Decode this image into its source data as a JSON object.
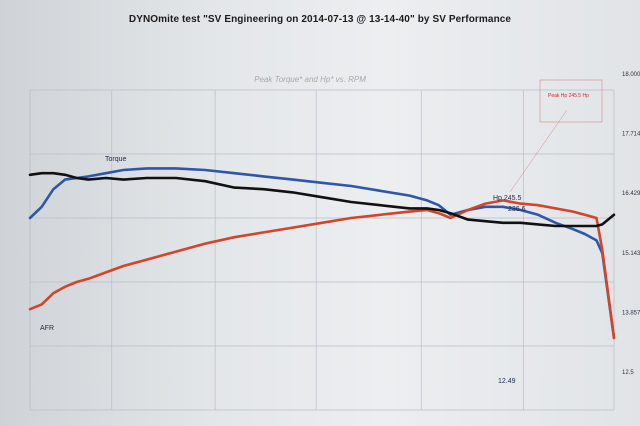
{
  "header": {
    "title": "DYNOmite test \"SV Engineering on 2014-07-13 @ 13-14-40\" by SV Performance"
  },
  "chart_data": {
    "type": "line",
    "subtitle": "Peak Torque* and Hp* vs. RPM",
    "right_axis_ticks": [
      "18.000",
      "17.714",
      "16.429",
      "15.143",
      "13.857",
      "12.5"
    ],
    "grid": true,
    "colors": {
      "torque": "#2f56a8",
      "hp": "#d2452b",
      "afr": "#111111",
      "grid": "#b8bec8"
    },
    "x_rel": [
      0,
      0.02,
      0.04,
      0.06,
      0.08,
      0.1,
      0.13,
      0.16,
      0.2,
      0.25,
      0.3,
      0.35,
      0.4,
      0.45,
      0.5,
      0.55,
      0.6,
      0.65,
      0.68,
      0.7,
      0.72,
      0.75,
      0.78,
      0.81,
      0.84,
      0.87,
      0.9,
      0.93,
      0.95,
      0.97,
      0.98,
      1.0
    ],
    "series": [
      {
        "name": "Torque",
        "values": [
          0.2,
          0.27,
          0.38,
          0.44,
          0.45,
          0.46,
          0.48,
          0.5,
          0.51,
          0.51,
          0.5,
          0.48,
          0.46,
          0.44,
          0.42,
          0.4,
          0.37,
          0.34,
          0.31,
          0.28,
          0.22,
          0.25,
          0.27,
          0.27,
          0.25,
          0.22,
          0.17,
          0.13,
          0.1,
          0.06,
          -0.02,
          -0.55
        ]
      },
      {
        "name": "Hp",
        "values": [
          -0.37,
          -0.34,
          -0.27,
          -0.23,
          -0.2,
          -0.18,
          -0.14,
          -0.1,
          -0.06,
          -0.01,
          0.04,
          0.08,
          0.11,
          0.14,
          0.17,
          0.2,
          0.22,
          0.24,
          0.25,
          0.23,
          0.2,
          0.25,
          0.29,
          0.31,
          0.29,
          0.28,
          0.26,
          0.24,
          0.22,
          0.2,
          0.0,
          -0.55
        ]
      },
      {
        "name": "AFR",
        "values": [
          0.47,
          0.48,
          0.48,
          0.47,
          0.45,
          0.44,
          0.45,
          0.44,
          0.45,
          0.45,
          0.43,
          0.39,
          0.38,
          0.36,
          0.33,
          0.3,
          0.28,
          0.26,
          0.26,
          0.25,
          0.23,
          0.19,
          0.18,
          0.17,
          0.17,
          0.16,
          0.15,
          0.15,
          0.15,
          0.15,
          0.16,
          0.22
        ]
      }
    ],
    "annotations": {
      "torque_label": "Torque",
      "afr_label": "AFR",
      "hp_peak_label": "Hp 245.5",
      "torque_end_label": "236.6",
      "afr_end_label": "12.49",
      "peak_note": "Peak Hp 245.5 Hp"
    }
  }
}
